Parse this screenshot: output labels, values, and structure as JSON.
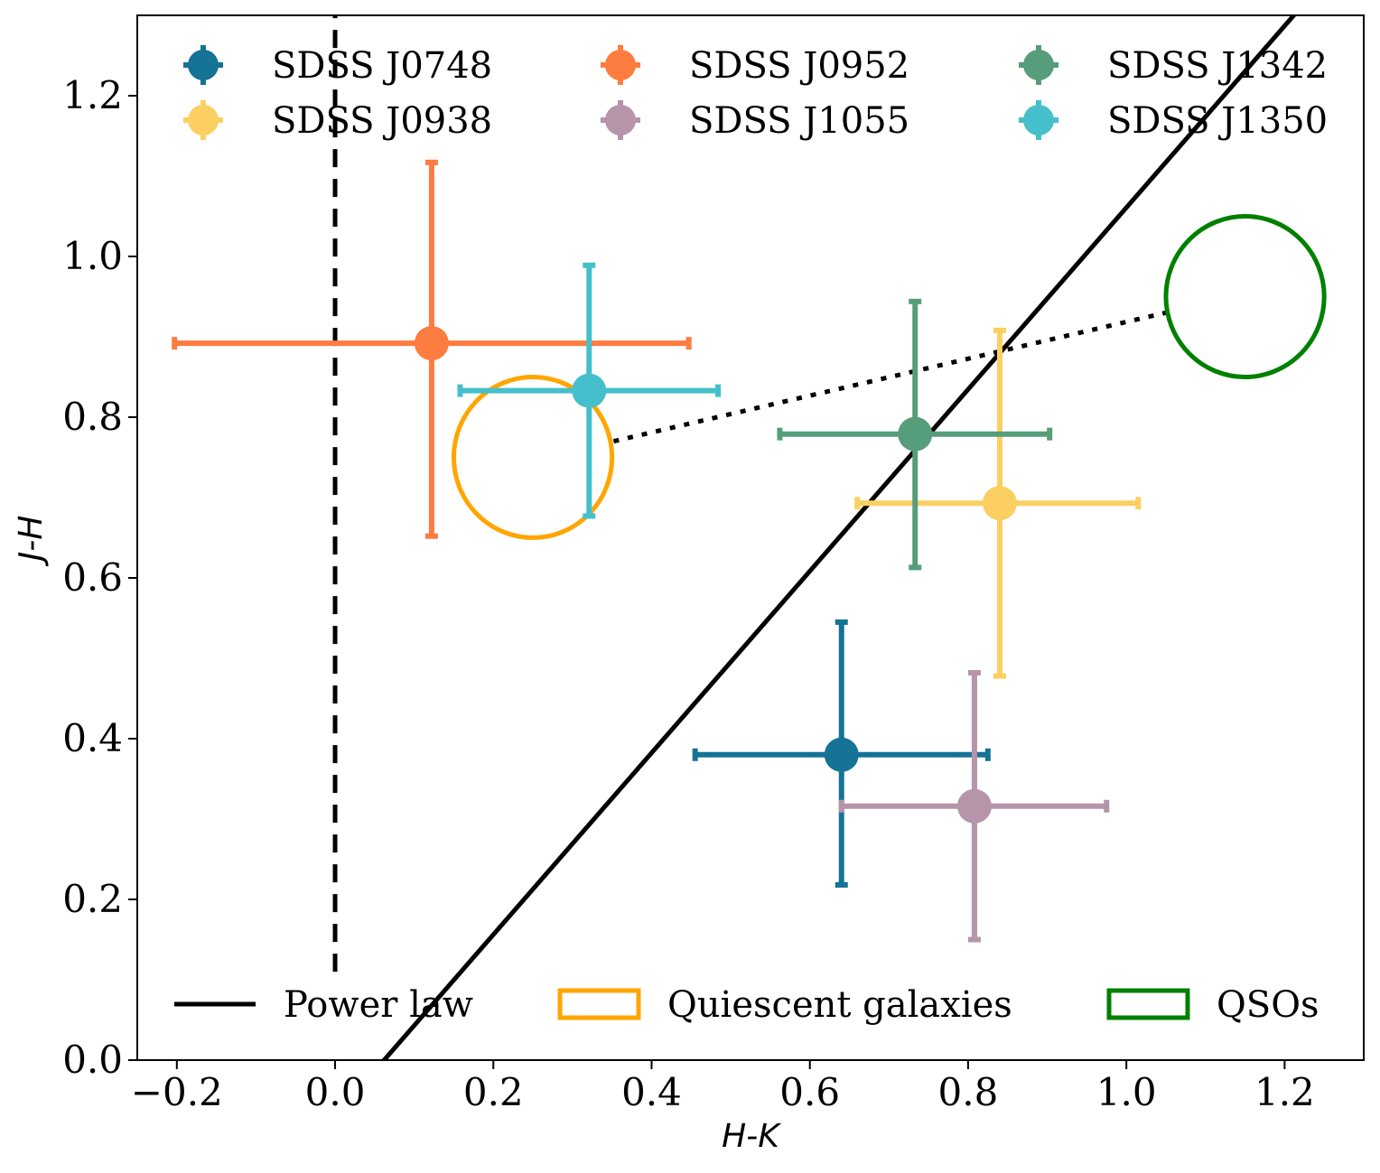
{
  "chart_data": {
    "type": "scatter",
    "xlabel": "H-K",
    "ylabel": "J-H",
    "xlim": [
      -0.25,
      1.3
    ],
    "ylim": [
      0.0,
      1.3
    ],
    "xticks": [
      -0.2,
      0.0,
      0.2,
      0.4,
      0.6,
      0.8,
      1.0,
      1.2
    ],
    "yticks": [
      0.0,
      0.2,
      0.4,
      0.6,
      0.8,
      1.0,
      1.2
    ],
    "xtick_labels": [
      "−0.2",
      "0.0",
      "0.2",
      "0.4",
      "0.6",
      "0.8",
      "1.0",
      "1.2"
    ],
    "ytick_labels": [
      "0.0",
      "0.2",
      "0.4",
      "0.6",
      "0.8",
      "1.0",
      "1.2"
    ],
    "series": [
      {
        "name": "SDSS J0748",
        "color": "#157396",
        "x": 0.64,
        "y": 0.38,
        "x_range": [
          0.455,
          0.825
        ],
        "y_range": [
          0.218,
          0.545
        ]
      },
      {
        "name": "SDSS J0938",
        "color": "#fbcf61",
        "x": 0.84,
        "y": 0.693,
        "x_range": [
          0.66,
          1.015
        ],
        "y_range": [
          0.478,
          0.908
        ]
      },
      {
        "name": "SDSS J0952",
        "color": "#fd7c3f",
        "x": 0.122,
        "y": 0.892,
        "x_range": [
          -0.203,
          0.447
        ],
        "y_range": [
          0.652,
          1.117
        ]
      },
      {
        "name": "SDSS J1055",
        "color": "#b694a9",
        "x": 0.808,
        "y": 0.316,
        "x_range": [
          0.64,
          0.975
        ],
        "y_range": [
          0.15,
          0.482
        ]
      },
      {
        "name": "SDSS J1342",
        "color": "#569d7b",
        "x": 0.733,
        "y": 0.779,
        "x_range": [
          0.562,
          0.903
        ],
        "y_range": [
          0.613,
          0.944
        ]
      },
      {
        "name": "SDSS J1350",
        "color": "#45bfcb",
        "x": 0.321,
        "y": 0.833,
        "x_range": [
          0.158,
          0.484
        ],
        "y_range": [
          0.677,
          0.989
        ]
      }
    ],
    "power_law": {
      "label": "Power law",
      "color": "#000000",
      "x": [
        0.0,
        1.3
      ],
      "y": [
        -0.07,
        1.4
      ]
    },
    "vertical_dashed": {
      "x": 0.0,
      "y_range": [
        0.11,
        1.3
      ]
    },
    "quiescent_galaxies": {
      "label": "Quiescent galaxies",
      "color": "#ffa500",
      "center": [
        0.25,
        0.75
      ],
      "radius": [
        0.1,
        0.1
      ]
    },
    "qsos": {
      "label": "QSOs",
      "color": "#008000",
      "center": [
        1.15,
        0.95
      ],
      "radius": [
        0.1,
        0.1
      ]
    },
    "dotted_link": {
      "x": [
        0.352,
        1.05
      ],
      "y": [
        0.77,
        0.93
      ]
    },
    "legend_top": "upper, 3 columns",
    "legend_bottom": "lower, 3 columns"
  }
}
